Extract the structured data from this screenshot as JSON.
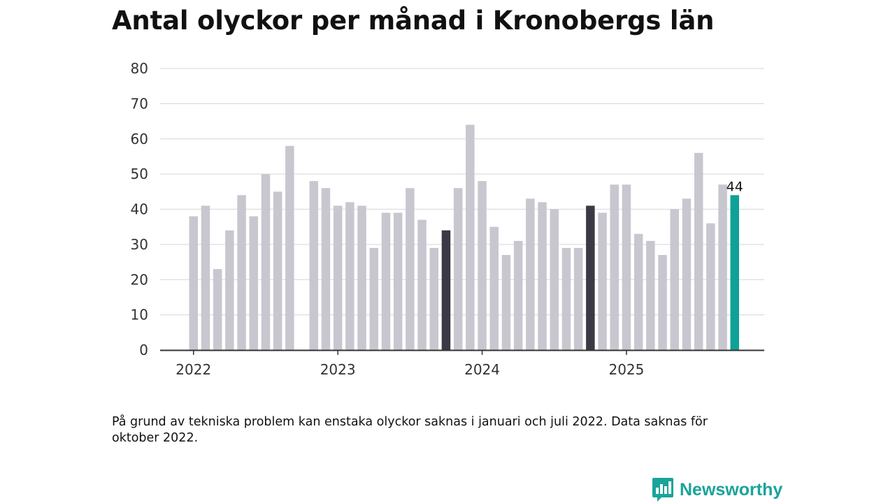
{
  "title": "Antal olyckor per månad i Kronobergs län",
  "note": "På grund av tekniska problem kan enstaka olyckor saknas i januari och juli 2022. Data saknas för oktober 2022.",
  "brand": {
    "name": "Newsworthy",
    "icon": "newsworthy-logo-icon",
    "color": "#1aa39a"
  },
  "colors": {
    "bar": "#c8c7d0",
    "highlight_dark": "#3a3a46",
    "latest": "#0fa197",
    "grid": "#dddddd",
    "axis": "#333333"
  },
  "chart_data": {
    "type": "bar",
    "title": "Antal olyckor per månad i Kronobergs län",
    "xlabel": "",
    "ylabel": "",
    "ylim": [
      0,
      80
    ],
    "yticks": [
      "0",
      "10",
      "20",
      "30",
      "40",
      "50",
      "60",
      "70",
      "80"
    ],
    "year_labels": [
      "2022",
      "2023",
      "2024",
      "2025"
    ],
    "value_label": "44",
    "categories": [
      "2022-01",
      "2022-02",
      "2022-03",
      "2022-04",
      "2022-05",
      "2022-06",
      "2022-07",
      "2022-08",
      "2022-09",
      "2022-10",
      "2022-11",
      "2022-12",
      "2023-01",
      "2023-02",
      "2023-03",
      "2023-04",
      "2023-05",
      "2023-06",
      "2023-07",
      "2023-08",
      "2023-09",
      "2023-10",
      "2023-11",
      "2023-12",
      "2024-01",
      "2024-02",
      "2024-03",
      "2024-04",
      "2024-05",
      "2024-06",
      "2024-07",
      "2024-08",
      "2024-09",
      "2024-10",
      "2024-11",
      "2024-12",
      "2025-01",
      "2025-02",
      "2025-03",
      "2025-04",
      "2025-05",
      "2025-06",
      "2025-07",
      "2025-08",
      "2025-09",
      "2025-10"
    ],
    "values": [
      38,
      41,
      23,
      34,
      44,
      38,
      50,
      45,
      58,
      null,
      48,
      46,
      41,
      42,
      41,
      29,
      39,
      39,
      46,
      37,
      29,
      34,
      46,
      64,
      48,
      35,
      27,
      31,
      43,
      42,
      40,
      29,
      29,
      41,
      39,
      47,
      47,
      33,
      31,
      27,
      40,
      43,
      56,
      36,
      47,
      44
    ],
    "highlight": [
      "2023-10",
      "2024-10"
    ],
    "latest": "2025-10"
  }
}
